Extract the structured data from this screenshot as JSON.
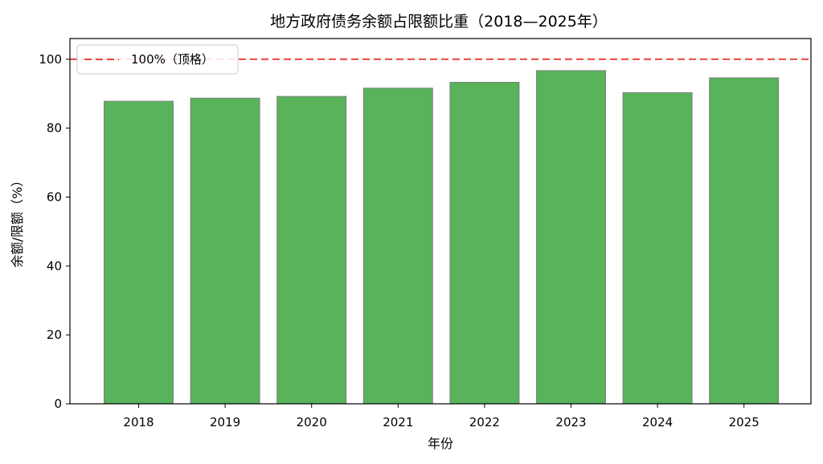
{
  "chart_data": {
    "type": "bar",
    "title": "地方政府债务余额占限额比重（2018—2025年）",
    "xlabel": "年份",
    "ylabel": "余额/限额（%）",
    "categories": [
      "2018",
      "2019",
      "2020",
      "2021",
      "2022",
      "2023",
      "2024",
      "2025"
    ],
    "values": [
      87.8,
      88.7,
      89.2,
      91.6,
      93.3,
      96.7,
      90.3,
      94.6
    ],
    "ylim": [
      0,
      106
    ],
    "yticks": [
      0,
      20,
      40,
      60,
      80,
      100
    ],
    "bar_color": "#58b35a",
    "bar_edge_color": "#808080",
    "reference_line": {
      "value": 100,
      "label": "100%（顶格）",
      "color": "#e8413b",
      "style": "dashed"
    },
    "legend": {
      "placement": "top-left"
    },
    "grid": false
  }
}
